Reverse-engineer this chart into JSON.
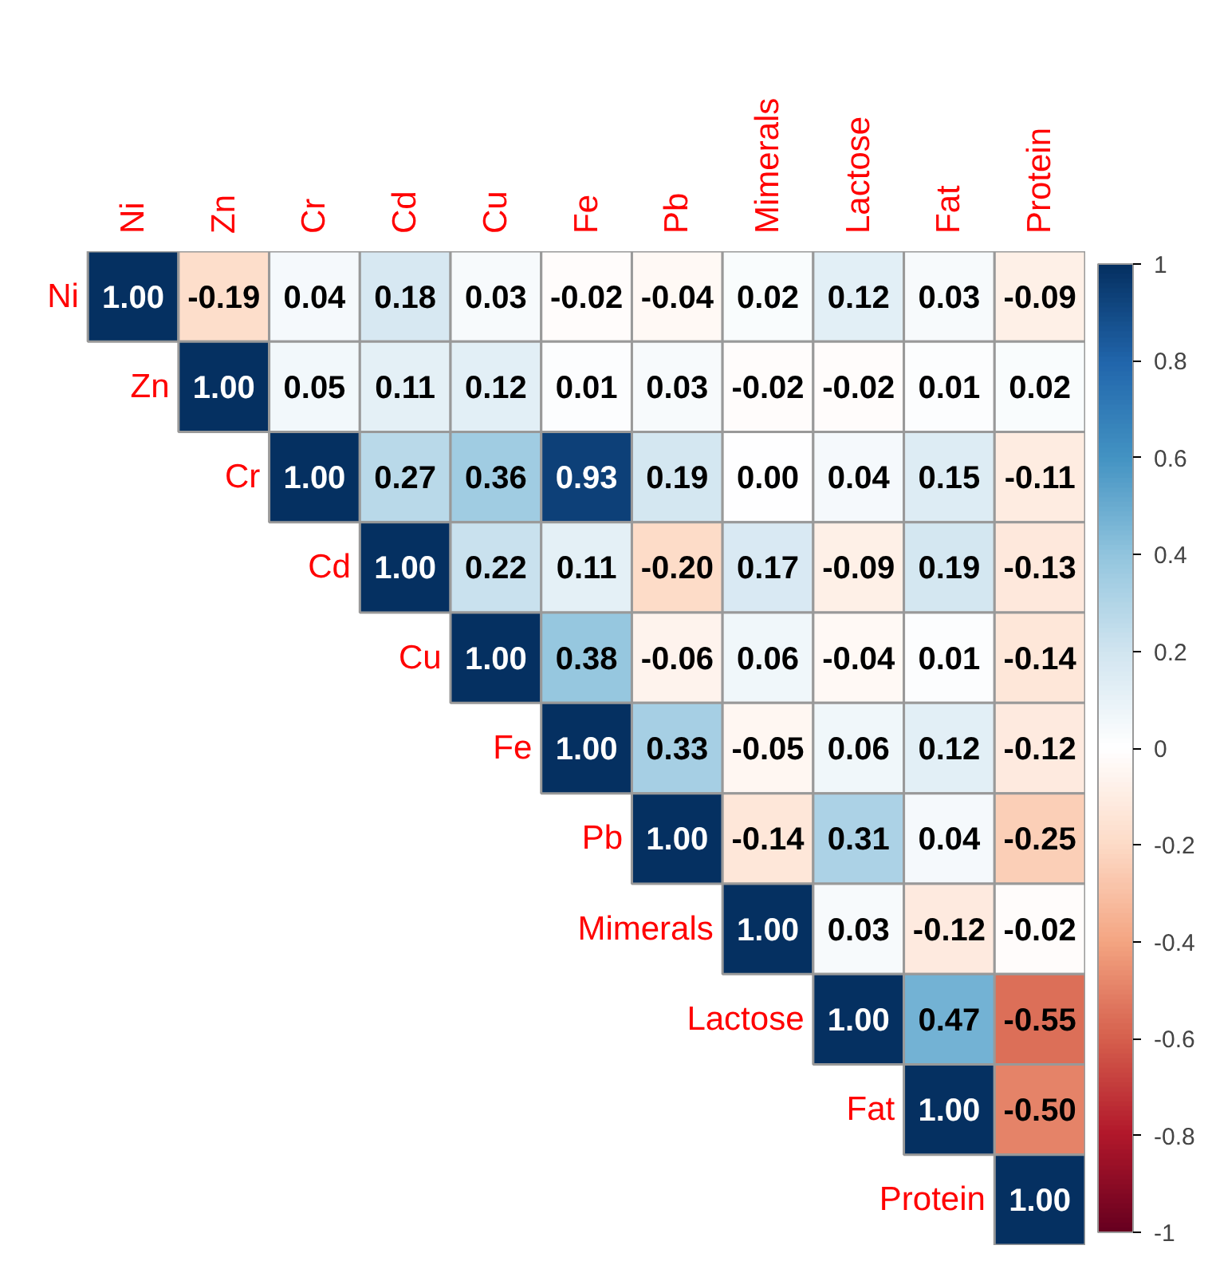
{
  "chart_data": {
    "type": "heatmap",
    "categories": [
      "Ni",
      "Zn",
      "Cr",
      "Cd",
      "Cu",
      "Fe",
      "Pb",
      "Mimerals",
      "Lactose",
      "Fat",
      "Protein"
    ],
    "y_categories": [
      "Ni",
      "Zn",
      "Cr",
      "Cd",
      "Cu",
      "Fe",
      "Pb",
      "Mimerals",
      "Lactose",
      "Fat",
      "Protein"
    ],
    "cells": [
      [
        1.0,
        -0.19,
        0.04,
        0.18,
        0.03,
        -0.02,
        -0.04,
        0.02,
        0.12,
        0.03,
        -0.09
      ],
      [
        null,
        1.0,
        0.05,
        0.11,
        0.12,
        0.01,
        0.03,
        -0.02,
        -0.02,
        0.01,
        0.02
      ],
      [
        null,
        null,
        1.0,
        0.27,
        0.36,
        0.93,
        0.19,
        0.0,
        0.04,
        0.15,
        -0.11
      ],
      [
        null,
        null,
        null,
        1.0,
        0.22,
        0.11,
        -0.2,
        0.17,
        -0.09,
        0.19,
        -0.13
      ],
      [
        null,
        null,
        null,
        null,
        1.0,
        0.38,
        -0.06,
        0.06,
        -0.04,
        0.01,
        -0.14
      ],
      [
        null,
        null,
        null,
        null,
        null,
        1.0,
        0.33,
        -0.05,
        0.06,
        0.12,
        -0.12
      ],
      [
        null,
        null,
        null,
        null,
        null,
        null,
        1.0,
        -0.14,
        0.31,
        0.04,
        -0.25
      ],
      [
        null,
        null,
        null,
        null,
        null,
        null,
        null,
        1.0,
        0.03,
        -0.12,
        -0.02
      ],
      [
        null,
        null,
        null,
        null,
        null,
        null,
        null,
        null,
        1.0,
        0.47,
        -0.55
      ],
      [
        null,
        null,
        null,
        null,
        null,
        null,
        null,
        null,
        null,
        1.0,
        -0.5
      ],
      [
        null,
        null,
        null,
        null,
        null,
        null,
        null,
        null,
        null,
        null,
        1.0
      ]
    ],
    "cell_labels": [
      [
        "1.00",
        "-0.19",
        "0.04",
        "0.18",
        "0.03",
        "-0.02",
        "-0.04",
        "0.02",
        "0.12",
        "0.03",
        "-0.09"
      ],
      [
        null,
        "1.00",
        "0.05",
        "0.11",
        "0.12",
        "0.01",
        "0.03",
        "-0.02",
        "-0.02",
        "0.01",
        "0.02"
      ],
      [
        null,
        null,
        "1.00",
        "0.27",
        "0.36",
        "0.93",
        "0.19",
        "0.00",
        "0.04",
        "0.15",
        "-0.11"
      ],
      [
        null,
        null,
        null,
        "1.00",
        "0.22",
        "0.11",
        "-0.20",
        "0.17",
        "-0.09",
        "0.19",
        "-0.13"
      ],
      [
        null,
        null,
        null,
        null,
        "1.00",
        "0.38",
        "-0.06",
        "0.06",
        "-0.04",
        "0.01",
        "-0.14"
      ],
      [
        null,
        null,
        null,
        null,
        null,
        "1.00",
        "0.33",
        "-0.05",
        "0.06",
        "0.12",
        "-0.12"
      ],
      [
        null,
        null,
        null,
        null,
        null,
        null,
        "1.00",
        "-0.14",
        "0.31",
        "0.04",
        "-0.25"
      ],
      [
        null,
        null,
        null,
        null,
        null,
        null,
        null,
        "1.00",
        "0.03",
        "-0.12",
        "-0.02"
      ],
      [
        null,
        null,
        null,
        null,
        null,
        null,
        null,
        null,
        "1.00",
        "0.47",
        "-0.55"
      ],
      [
        null,
        null,
        null,
        null,
        null,
        null,
        null,
        null,
        null,
        "1.00",
        "-0.50"
      ],
      [
        null,
        null,
        null,
        null,
        null,
        null,
        null,
        null,
        null,
        null,
        "1.00"
      ]
    ],
    "clim": [
      -1,
      1
    ],
    "cticks": [
      -1,
      -0.8,
      -0.6,
      -0.4,
      -0.2,
      0,
      0.2,
      0.4,
      0.6,
      0.8,
      1
    ],
    "data_labels": true
  }
}
